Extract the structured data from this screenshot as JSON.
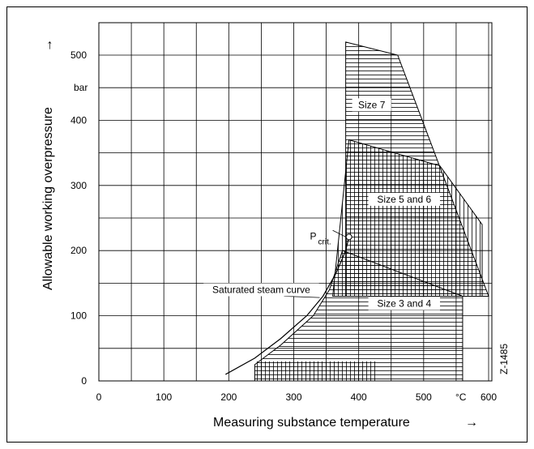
{
  "chart_data": {
    "type": "area",
    "xlabel": "Measuring substance temperature",
    "ylabel": "Allowable working overpressure",
    "x_unit": "°C",
    "y_unit": "bar",
    "xlim": [
      0,
      600
    ],
    "ylim": [
      0,
      500
    ],
    "x_ticks": [
      "0",
      "100",
      "200",
      "300",
      "400",
      "500",
      "600"
    ],
    "y_ticks": [
      "0",
      "100",
      "200",
      "300",
      "400",
      "500"
    ],
    "grid": true,
    "figure_id": "Z-1485",
    "regions": [
      {
        "name": "Size 7",
        "points": [
          [
            380,
            520
          ],
          [
            460,
            500
          ],
          [
            600,
            130
          ],
          [
            380,
            130
          ]
        ]
      },
      {
        "name": "Size 5 and 6",
        "points": [
          [
            385,
            370
          ],
          [
            525,
            330
          ],
          [
            590,
            240
          ],
          [
            590,
            130
          ],
          [
            360,
            130
          ]
        ]
      },
      {
        "name": "Size 3 and 4",
        "points": [
          [
            240,
            25
          ],
          [
            280,
            55
          ],
          [
            330,
            100
          ],
          [
            355,
            140
          ],
          [
            375,
            200
          ],
          [
            560,
            130
          ],
          [
            560,
            0
          ],
          [
            240,
            0
          ]
        ]
      }
    ],
    "saturated_steam_curve": {
      "label": "Saturated steam curve",
      "points": [
        [
          195,
          10
        ],
        [
          240,
          35
        ],
        [
          280,
          65
        ],
        [
          320,
          100
        ],
        [
          345,
          130
        ],
        [
          365,
          165
        ],
        [
          380,
          200
        ],
        [
          385,
          221
        ]
      ]
    },
    "critical_point": {
      "label": "P",
      "subscript": "crit.",
      "x": 385,
      "y": 221
    },
    "arrows": {
      "x_axis": "→",
      "y_axis": "→"
    }
  }
}
